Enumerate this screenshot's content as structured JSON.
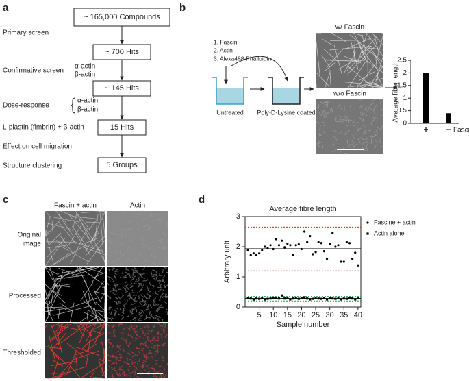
{
  "panel_a": {
    "letter": "a",
    "boxes": [
      "~ 165,000 Compounds",
      "~ 700 Hits",
      "~ 145 Hits",
      "15 Hits",
      "5 Groups"
    ],
    "labels": [
      "Primary screen",
      "Confirmative screen",
      "Dose-response",
      "L-plastin (fimbrin) + β-actin",
      "Effect on cell migration",
      "Structure clustering"
    ],
    "confirm_actins": [
      "α-actin",
      "β-actin"
    ],
    "dose_actins": [
      "α-actin",
      "β-actin"
    ]
  },
  "panel_b": {
    "letter": "b",
    "steps": [
      "1. Fascin",
      "2. Actin",
      "3. Alexa488-Phalloidin"
    ],
    "beaker_labels": [
      "Untreated",
      "Poly-D-Lysine coated"
    ],
    "image_labels": [
      "w/ Fascin",
      "w/o Fascin"
    ]
  },
  "panel_c": {
    "letter": "c",
    "columns": [
      "Fascin + actin",
      "Actin"
    ],
    "rows": [
      [
        "Original",
        "image"
      ],
      [
        "Processed"
      ],
      [
        "Thresholded"
      ]
    ]
  },
  "panel_d": {
    "letter": "d"
  },
  "chart_data": [
    {
      "type": "bar",
      "categories": [
        "+",
        "−"
      ],
      "values": [
        2.0,
        0.4
      ],
      "color": "#000000",
      "y_label": "Average fiber length",
      "x_label": "Fascin",
      "ylim": [
        0,
        2.5
      ],
      "yticks": [
        0,
        0.5,
        1,
        1.5,
        2,
        2.5
      ]
    },
    {
      "type": "scatter",
      "title": "Average fibre length",
      "x_label": "Sample number",
      "y_label": "Arbitrary unit",
      "x": [
        1,
        2,
        3,
        4,
        5,
        6,
        7,
        8,
        9,
        10,
        11,
        12,
        13,
        14,
        15,
        16,
        17,
        18,
        19,
        20,
        21,
        22,
        23,
        24,
        25,
        26,
        27,
        28,
        29,
        30,
        31,
        32,
        33,
        34,
        35,
        36,
        37,
        38,
        39,
        40
      ],
      "series": [
        {
          "name": "Fascine + actin",
          "color": "#000000",
          "marker": "circle",
          "values": [
            1.88,
            1.72,
            1.78,
            1.72,
            1.78,
            1.88,
            2.0,
            1.95,
            2.05,
            1.92,
            2.25,
            2.05,
            2.2,
            1.98,
            2.1,
            2.05,
            1.72,
            2.05,
            2.08,
            1.92,
            2.5,
            2.15,
            2.35,
            1.75,
            1.82,
            2.15,
            2.12,
            1.85,
            1.6,
            2.1,
            2.45,
            2.0,
            2.05,
            1.5,
            1.5,
            2.15,
            2.12,
            1.6,
            1.8,
            1.38
          ]
        },
        {
          "name": "Actin alone",
          "color": "#000000",
          "marker": "square",
          "values": [
            0.3,
            0.28,
            0.25,
            0.28,
            0.27,
            0.3,
            0.25,
            0.27,
            0.28,
            0.3,
            0.3,
            0.28,
            0.38,
            0.28,
            0.3,
            0.25,
            0.28,
            0.3,
            0.27,
            0.3,
            0.32,
            0.28,
            0.25,
            0.27,
            0.3,
            0.28,
            0.27,
            0.3,
            0.25,
            0.3,
            0.28,
            0.27,
            0.3,
            0.25,
            0.28,
            0.27,
            0.3,
            0.28,
            0.25,
            0.3
          ]
        }
      ],
      "reference_lines": [
        {
          "value": 1.93,
          "color": "#000000",
          "style": "solid"
        },
        {
          "value": 2.65,
          "color": "#e0202a",
          "style": "dotted"
        },
        {
          "value": 1.2,
          "color": "#e0202a",
          "style": "dotted"
        },
        {
          "value": 0.28,
          "color": "#000000",
          "style": "solid"
        },
        {
          "value": 0.35,
          "color": "#2a9a5a",
          "style": "dotted"
        },
        {
          "value": 0.2,
          "color": "#2a9a5a",
          "style": "dotted"
        }
      ],
      "xlim": [
        0,
        41
      ],
      "ylim": [
        0,
        3
      ],
      "xticks": [
        5,
        10,
        15,
        20,
        25,
        30,
        35,
        40
      ],
      "yticks": [
        0,
        1,
        2,
        3
      ],
      "legend": "right"
    }
  ]
}
